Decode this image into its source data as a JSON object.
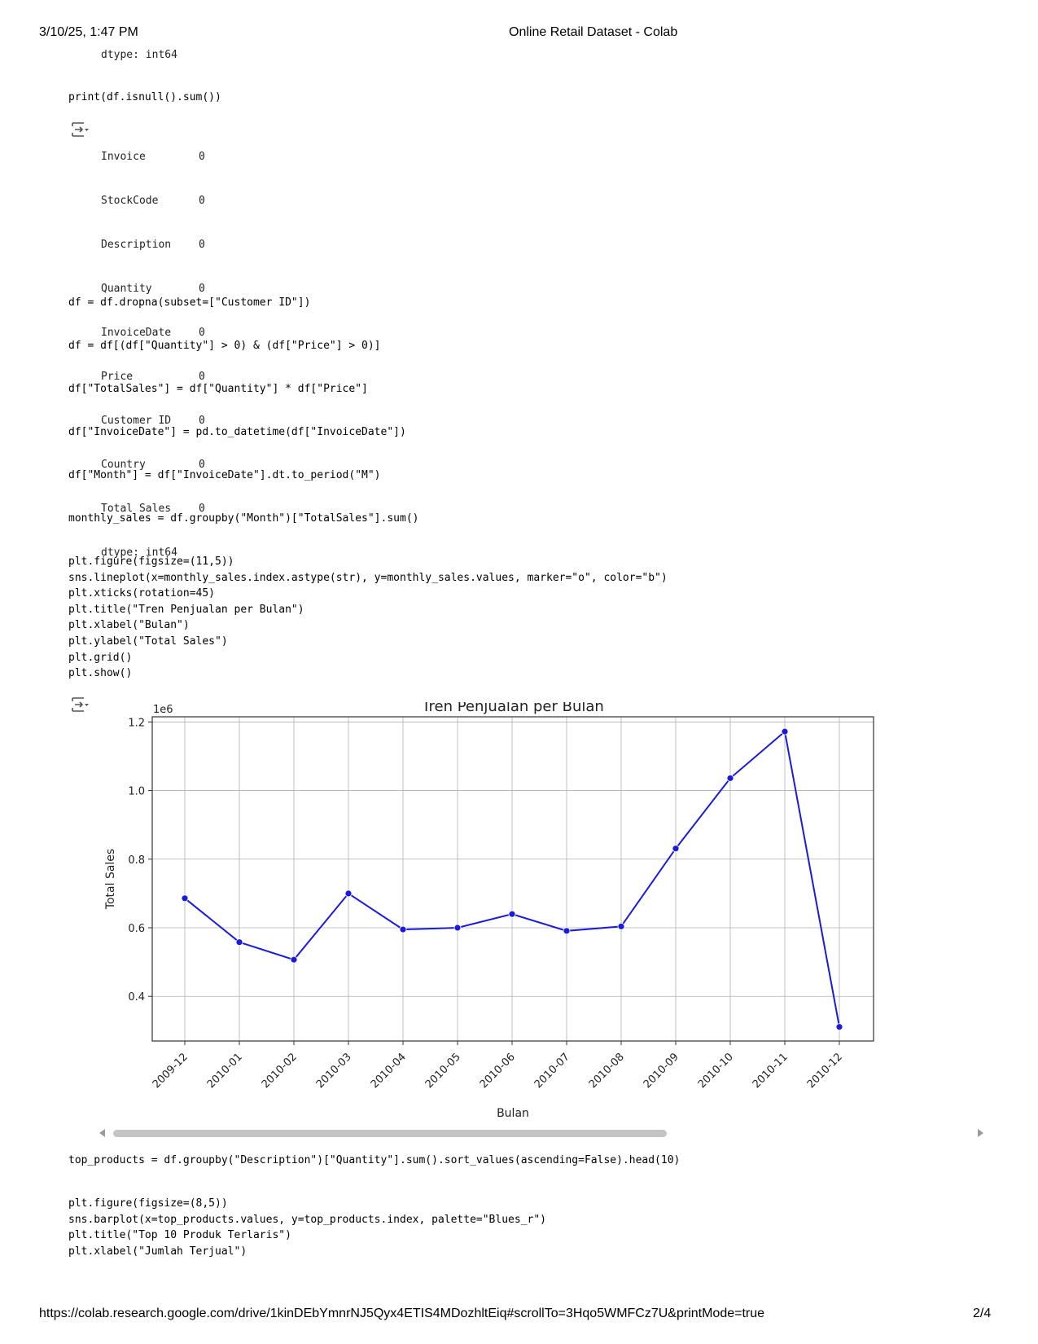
{
  "print_header": {
    "datetime": "3/10/25, 1:47 PM",
    "title": "Online Retail Dataset - Colab"
  },
  "print_footer": {
    "url": "https://colab.research.google.com/drive/1kinDEbYmnrNJ5Qyx4ETIS4MDozhltEiq#scrollTo=3Hqo5WMFCz7U&printMode=true",
    "page": "2/4"
  },
  "prev_output_tail": "dtype: int64",
  "cells": {
    "isnull": "print(df.isnull().sum())",
    "dropna": "df = df.dropna(subset=[\"Customer ID\"])",
    "filter": "df = df[(df[\"Quantity\"] > 0) & (df[\"Price\"] > 0)]",
    "total_sales": "df[\"TotalSales\"] = df[\"Quantity\"] * df[\"Price\"]",
    "to_datetime": "df[\"InvoiceDate\"] = pd.to_datetime(df[\"InvoiceDate\"])",
    "month": "df[\"Month\"] = df[\"InvoiceDate\"].dt.to_period(\"M\")",
    "monthly_sales": "monthly_sales = df.groupby(\"Month\")[\"TotalSales\"].sum()",
    "plot": "plt.figure(figsize=(11,5))\nsns.lineplot(x=monthly_sales.index.astype(str), y=monthly_sales.values, marker=\"o\", color=\"b\")\nplt.xticks(rotation=45)\nplt.title(\"Tren Penjualan per Bulan\")\nplt.xlabel(\"Bulan\")\nplt.ylabel(\"Total Sales\")\nplt.grid()\nplt.show()",
    "top_products": "top_products = df.groupby(\"Description\")[\"Quantity\"].sum().sort_values(ascending=False).head(10)",
    "barplot": "plt.figure(figsize=(8,5))\nsns.barplot(x=top_products.values, y=top_products.index, palette=\"Blues_r\")\nplt.title(\"Top 10 Produk Terlaris\")\nplt.xlabel(\"Jumlah Terjual\")"
  },
  "isnull_output": {
    "rows": [
      {
        "name": "Invoice",
        "value": "0"
      },
      {
        "name": "StockCode",
        "value": "0"
      },
      {
        "name": "Description",
        "value": "0"
      },
      {
        "name": "Quantity",
        "value": "0"
      },
      {
        "name": "InvoiceDate",
        "value": "0"
      },
      {
        "name": "Price",
        "value": "0"
      },
      {
        "name": "Customer ID",
        "value": "0"
      },
      {
        "name": "Country",
        "value": "0"
      },
      {
        "name": "Total Sales",
        "value": "0"
      }
    ],
    "dtype": "dtype: int64"
  },
  "icons": {
    "output_toggle": "output-toggle-icon",
    "scroll_left": "scroll-left-arrow-icon",
    "scroll_right": "scroll-right-arrow-icon"
  },
  "chart_data": {
    "type": "line",
    "title": "Tren Penjualan per Bulan",
    "xlabel": "Bulan",
    "ylabel": "Total Sales",
    "y_offset_label": "1e6",
    "categories": [
      "2009-12",
      "2010-01",
      "2010-02",
      "2010-03",
      "2010-04",
      "2010-05",
      "2010-06",
      "2010-07",
      "2010-08",
      "2010-09",
      "2010-10",
      "2010-11",
      "2010-12"
    ],
    "series": [
      {
        "color": "#1a1adb",
        "marker": "o",
        "values": [
          686000,
          558000,
          507000,
          700000,
          595000,
          600000,
          640000,
          591000,
          604000,
          831000,
          1036000,
          1172000,
          311000
        ]
      }
    ],
    "yticks": [
      "0.4",
      "0.6",
      "0.8",
      "1.0",
      "1.2"
    ],
    "ytick_values": [
      400000,
      600000,
      800000,
      1000000,
      1200000
    ],
    "ylim": [
      270000,
      1215000
    ],
    "grid": true,
    "xtick_rotation": 45
  }
}
